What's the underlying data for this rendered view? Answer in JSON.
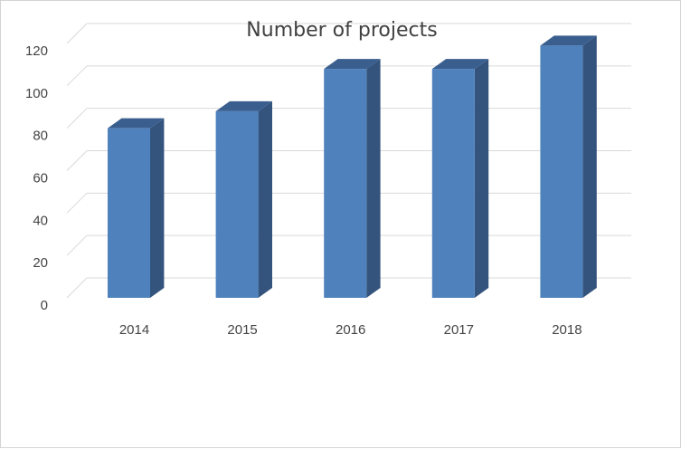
{
  "chart_data": {
    "type": "bar",
    "title": "Number of projects",
    "categories": [
      "2014",
      "2015",
      "2016",
      "2017",
      "2018"
    ],
    "values": [
      80,
      88,
      108,
      108,
      119
    ],
    "ylim": [
      0,
      120
    ],
    "yticks": [
      0,
      20,
      40,
      60,
      80,
      100,
      120
    ],
    "grid": true,
    "legend": "none",
    "three_d": true,
    "colors": {
      "bar_front": "#4f81bd",
      "bar_side": "#34547e",
      "bar_top": "#3a5f8f",
      "grid": "#d9d9d9",
      "axis_text": "#444444"
    }
  }
}
